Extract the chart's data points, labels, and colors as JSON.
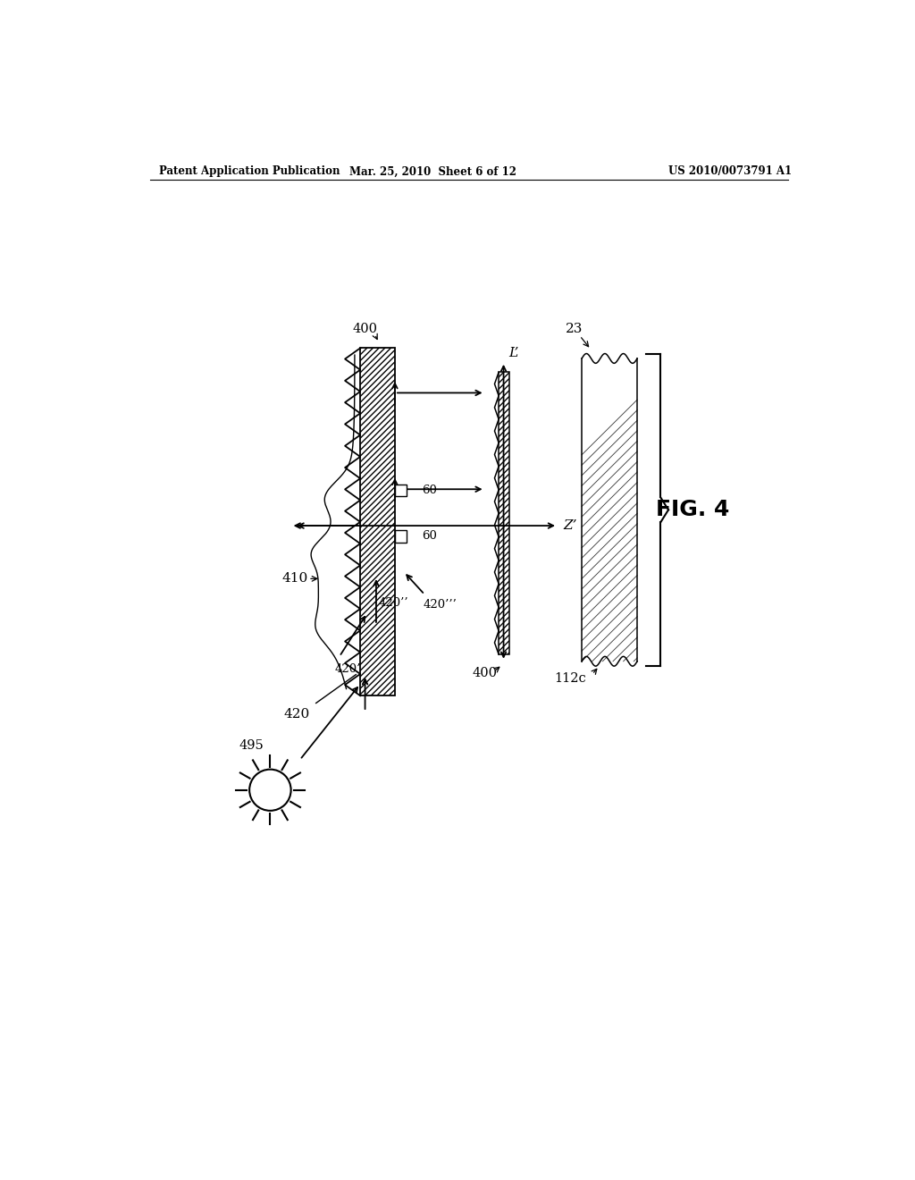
{
  "header_left": "Patent Application Publication",
  "header_center": "Mar. 25, 2010  Sheet 6 of 12",
  "header_right": "US 2010/0073791 A1",
  "fig_label": "FIG. 4",
  "background": "#ffffff",
  "label_400_top": "400",
  "label_400_bot": "400",
  "label_410": "410",
  "label_420": "420",
  "label_420p": "420’",
  "label_420pp": "420’’",
  "label_420ppp": "420’’’",
  "label_60a": "60",
  "label_60b": "60",
  "label_Zprime": "Z’",
  "label_Lprime": "L’",
  "label_23": "23",
  "label_112c": "112c",
  "label_495": "495"
}
